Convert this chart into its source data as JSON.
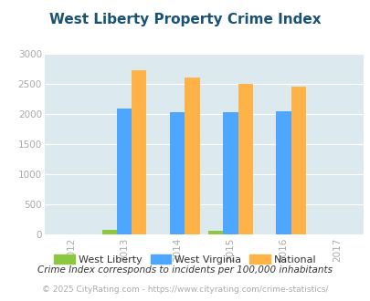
{
  "title": "West Liberty Property Crime Index",
  "years": [
    2012,
    2013,
    2014,
    2015,
    2016,
    2017
  ],
  "bar_years": [
    2013,
    2014,
    2015,
    2016
  ],
  "west_liberty": [
    75,
    0,
    65,
    0
  ],
  "west_virginia": [
    2100,
    2030,
    2030,
    2055
  ],
  "national": [
    2730,
    2610,
    2500,
    2460
  ],
  "colors": {
    "west_liberty": "#8dc63f",
    "west_virginia": "#4da6ff",
    "national": "#ffb347"
  },
  "ylim": [
    0,
    3000
  ],
  "yticks": [
    0,
    500,
    1000,
    1500,
    2000,
    2500,
    3000
  ],
  "bg_color": "#dce9ee",
  "title_color": "#1a5276",
  "legend_labels": [
    "West Liberty",
    "West Virginia",
    "National"
  ],
  "footnote1": "Crime Index corresponds to incidents per 100,000 inhabitants",
  "footnote2": "© 2025 CityRating.com - https://www.cityrating.com/crime-statistics/",
  "bar_width": 0.28,
  "tick_color": "#aaaaaa",
  "footnote1_color": "#333333",
  "footnote2_color": "#aaaaaa",
  "footnote2_url_color": "#4da6ff"
}
